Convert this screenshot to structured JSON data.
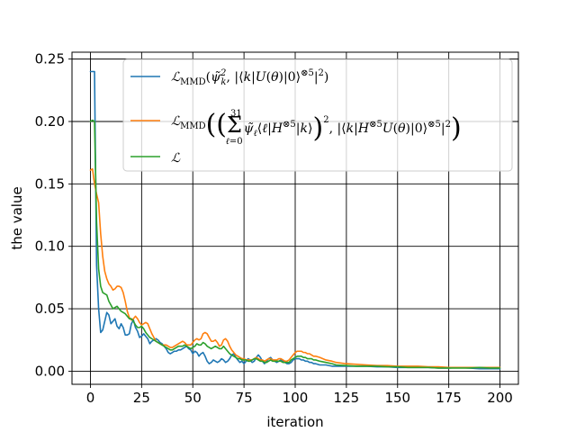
{
  "chart_data": {
    "type": "line",
    "xlabel": "iteration",
    "ylabel": "the value",
    "xlim": [
      -9,
      209
    ],
    "ylim": [
      -0.0105,
      0.2555
    ],
    "x_ticks": [
      0,
      25,
      50,
      75,
      100,
      125,
      150,
      175,
      200
    ],
    "y_ticks": [
      0.0,
      0.05,
      0.1,
      0.15,
      0.2,
      0.25
    ],
    "x_tick_labels": [
      "0",
      "25",
      "50",
      "75",
      "100",
      "125",
      "150",
      "175",
      "200"
    ],
    "y_tick_labels": [
      "0.00",
      "0.05",
      "0.10",
      "0.15",
      "0.20",
      "0.25"
    ],
    "grid": true,
    "legend_position": "top-right",
    "series": [
      {
        "name": "ℒMMD(ψ̃k², |⟨k|U(θ)|0⟩⊗5|²)",
        "color": "#1f77b4",
        "x": [
          0,
          1,
          2,
          3,
          4,
          5,
          6,
          7,
          8,
          9,
          10,
          11,
          12,
          13,
          14,
          15,
          16,
          17,
          18,
          19,
          20,
          21,
          22,
          23,
          24,
          25,
          26,
          27,
          28,
          29,
          30,
          31,
          32,
          33,
          34,
          35,
          36,
          37,
          38,
          39,
          40,
          41,
          42,
          43,
          44,
          45,
          46,
          47,
          48,
          49,
          50,
          51,
          52,
          53,
          54,
          55,
          56,
          57,
          58,
          59,
          60,
          61,
          62,
          63,
          64,
          65,
          66,
          67,
          68,
          69,
          70,
          71,
          72,
          73,
          74,
          75,
          76,
          77,
          78,
          79,
          80,
          81,
          82,
          83,
          84,
          85,
          86,
          87,
          88,
          89,
          90,
          91,
          92,
          93,
          94,
          95,
          96,
          97,
          98,
          99,
          100,
          101,
          102,
          103,
          104,
          105,
          106,
          107,
          108,
          109,
          110,
          112,
          115,
          118,
          120,
          125,
          130,
          135,
          140,
          145,
          150,
          155,
          160,
          165,
          170,
          175,
          180,
          185,
          190,
          195,
          200
        ],
        "values": [
          0.24,
          0.24,
          0.24,
          0.085,
          0.05,
          0.031,
          0.033,
          0.04,
          0.047,
          0.045,
          0.038,
          0.04,
          0.042,
          0.036,
          0.034,
          0.038,
          0.035,
          0.029,
          0.029,
          0.03,
          0.038,
          0.041,
          0.035,
          0.032,
          0.027,
          0.028,
          0.03,
          0.028,
          0.026,
          0.022,
          0.024,
          0.025,
          0.026,
          0.025,
          0.023,
          0.022,
          0.02,
          0.018,
          0.015,
          0.014,
          0.015,
          0.016,
          0.016,
          0.017,
          0.017,
          0.018,
          0.019,
          0.02,
          0.018,
          0.017,
          0.014,
          0.016,
          0.015,
          0.012,
          0.014,
          0.015,
          0.012,
          0.008,
          0.006,
          0.007,
          0.009,
          0.008,
          0.007,
          0.008,
          0.01,
          0.009,
          0.007,
          0.008,
          0.01,
          0.013,
          0.014,
          0.011,
          0.009,
          0.007,
          0.008,
          0.006,
          0.008,
          0.01,
          0.009,
          0.007,
          0.008,
          0.011,
          0.013,
          0.011,
          0.008,
          0.006,
          0.008,
          0.01,
          0.011,
          0.009,
          0.008,
          0.007,
          0.008,
          0.009,
          0.008,
          0.007,
          0.006,
          0.006,
          0.007,
          0.009,
          0.01,
          0.01,
          0.01,
          0.009,
          0.009,
          0.008,
          0.008,
          0.007,
          0.007,
          0.006,
          0.006,
          0.005,
          0.005,
          0.004,
          0.004,
          0.004,
          0.004,
          0.004,
          0.0035,
          0.0035,
          0.003,
          0.003,
          0.003,
          0.003,
          0.0025,
          0.0025,
          0.003,
          0.0025,
          0.002,
          0.002,
          0.002
        ]
      },
      {
        "name": "ℒMMD(( Σℓ=0..31 ψ̃ℓ⟨ℓ|H⊗5|k⟩ )², |⟨k|H⊗5U(θ)|0⟩⊗5|²)",
        "color": "#ff7f0e",
        "x": [
          0,
          1,
          2,
          3,
          4,
          5,
          6,
          7,
          8,
          9,
          10,
          11,
          12,
          13,
          14,
          15,
          16,
          17,
          18,
          19,
          20,
          21,
          22,
          23,
          24,
          25,
          26,
          27,
          28,
          29,
          30,
          31,
          32,
          33,
          34,
          35,
          36,
          37,
          38,
          39,
          40,
          41,
          42,
          43,
          44,
          45,
          46,
          47,
          48,
          49,
          50,
          51,
          52,
          53,
          54,
          55,
          56,
          57,
          58,
          59,
          60,
          61,
          62,
          63,
          64,
          65,
          66,
          67,
          68,
          69,
          70,
          71,
          72,
          73,
          74,
          75,
          76,
          77,
          78,
          79,
          80,
          81,
          82,
          83,
          84,
          85,
          86,
          87,
          88,
          89,
          90,
          91,
          92,
          93,
          94,
          95,
          96,
          97,
          98,
          99,
          100,
          101,
          102,
          103,
          104,
          105,
          106,
          107,
          108,
          109,
          110,
          112,
          115,
          118,
          120,
          125,
          130,
          135,
          140,
          145,
          150,
          155,
          160,
          165,
          170,
          175,
          180,
          185,
          190,
          195,
          200
        ],
        "values": [
          0.161,
          0.162,
          0.15,
          0.142,
          0.135,
          0.11,
          0.092,
          0.08,
          0.074,
          0.07,
          0.068,
          0.065,
          0.066,
          0.068,
          0.068,
          0.067,
          0.063,
          0.056,
          0.048,
          0.043,
          0.041,
          0.042,
          0.044,
          0.042,
          0.039,
          0.037,
          0.038,
          0.039,
          0.038,
          0.034,
          0.03,
          0.027,
          0.024,
          0.023,
          0.022,
          0.021,
          0.021,
          0.021,
          0.02,
          0.019,
          0.019,
          0.02,
          0.021,
          0.022,
          0.023,
          0.024,
          0.023,
          0.021,
          0.021,
          0.021,
          0.023,
          0.025,
          0.026,
          0.025,
          0.026,
          0.03,
          0.031,
          0.03,
          0.027,
          0.024,
          0.024,
          0.025,
          0.023,
          0.02,
          0.021,
          0.025,
          0.026,
          0.024,
          0.02,
          0.017,
          0.015,
          0.013,
          0.012,
          0.011,
          0.01,
          0.01,
          0.009,
          0.009,
          0.009,
          0.009,
          0.01,
          0.011,
          0.01,
          0.009,
          0.009,
          0.008,
          0.009,
          0.01,
          0.01,
          0.009,
          0.009,
          0.009,
          0.01,
          0.01,
          0.009,
          0.008,
          0.008,
          0.009,
          0.011,
          0.013,
          0.015,
          0.016,
          0.016,
          0.016,
          0.015,
          0.015,
          0.014,
          0.014,
          0.013,
          0.012,
          0.012,
          0.011,
          0.009,
          0.008,
          0.007,
          0.006,
          0.0055,
          0.005,
          0.0045,
          0.0045,
          0.004,
          0.004,
          0.004,
          0.0035,
          0.0035,
          0.003,
          0.003,
          0.003,
          0.003,
          0.003,
          0.003
        ]
      },
      {
        "name": "ℒ",
        "color": "#2ca02c",
        "x": [
          0,
          1,
          2,
          3,
          4,
          5,
          6,
          7,
          8,
          9,
          10,
          11,
          12,
          13,
          14,
          15,
          16,
          17,
          18,
          19,
          20,
          21,
          22,
          23,
          24,
          25,
          26,
          27,
          28,
          29,
          30,
          31,
          32,
          33,
          34,
          35,
          36,
          37,
          38,
          39,
          40,
          41,
          42,
          43,
          44,
          45,
          46,
          47,
          48,
          49,
          50,
          51,
          52,
          53,
          54,
          55,
          56,
          57,
          58,
          59,
          60,
          61,
          62,
          63,
          64,
          65,
          66,
          67,
          68,
          69,
          70,
          71,
          72,
          73,
          74,
          75,
          76,
          77,
          78,
          79,
          80,
          81,
          82,
          83,
          84,
          85,
          86,
          87,
          88,
          89,
          90,
          91,
          92,
          93,
          94,
          95,
          96,
          97,
          98,
          99,
          100,
          101,
          102,
          103,
          104,
          105,
          106,
          107,
          108,
          109,
          110,
          112,
          115,
          118,
          120,
          125,
          130,
          135,
          140,
          145,
          150,
          155,
          160,
          165,
          170,
          175,
          180,
          185,
          190,
          195,
          200
        ],
        "values": [
          0.2,
          0.201,
          0.2,
          0.12,
          0.082,
          0.068,
          0.063,
          0.062,
          0.061,
          0.056,
          0.053,
          0.05,
          0.051,
          0.052,
          0.05,
          0.048,
          0.047,
          0.046,
          0.044,
          0.042,
          0.042,
          0.04,
          0.037,
          0.035,
          0.035,
          0.036,
          0.034,
          0.031,
          0.029,
          0.027,
          0.026,
          0.025,
          0.024,
          0.023,
          0.022,
          0.021,
          0.02,
          0.019,
          0.018,
          0.017,
          0.017,
          0.018,
          0.019,
          0.02,
          0.02,
          0.02,
          0.021,
          0.02,
          0.019,
          0.018,
          0.019,
          0.02,
          0.022,
          0.021,
          0.021,
          0.023,
          0.022,
          0.02,
          0.019,
          0.018,
          0.019,
          0.02,
          0.019,
          0.018,
          0.018,
          0.02,
          0.018,
          0.016,
          0.014,
          0.013,
          0.012,
          0.011,
          0.01,
          0.01,
          0.009,
          0.009,
          0.009,
          0.008,
          0.008,
          0.009,
          0.01,
          0.01,
          0.009,
          0.008,
          0.008,
          0.007,
          0.007,
          0.008,
          0.009,
          0.008,
          0.008,
          0.008,
          0.008,
          0.008,
          0.007,
          0.007,
          0.007,
          0.007,
          0.009,
          0.01,
          0.011,
          0.012,
          0.012,
          0.012,
          0.011,
          0.011,
          0.01,
          0.01,
          0.01,
          0.009,
          0.009,
          0.008,
          0.007,
          0.006,
          0.005,
          0.0045,
          0.004,
          0.004,
          0.004,
          0.0035,
          0.0035,
          0.003,
          0.003,
          0.003,
          0.0025,
          0.0025,
          0.0025,
          0.0025,
          0.003,
          0.0025,
          0.0025
        ]
      }
    ]
  }
}
